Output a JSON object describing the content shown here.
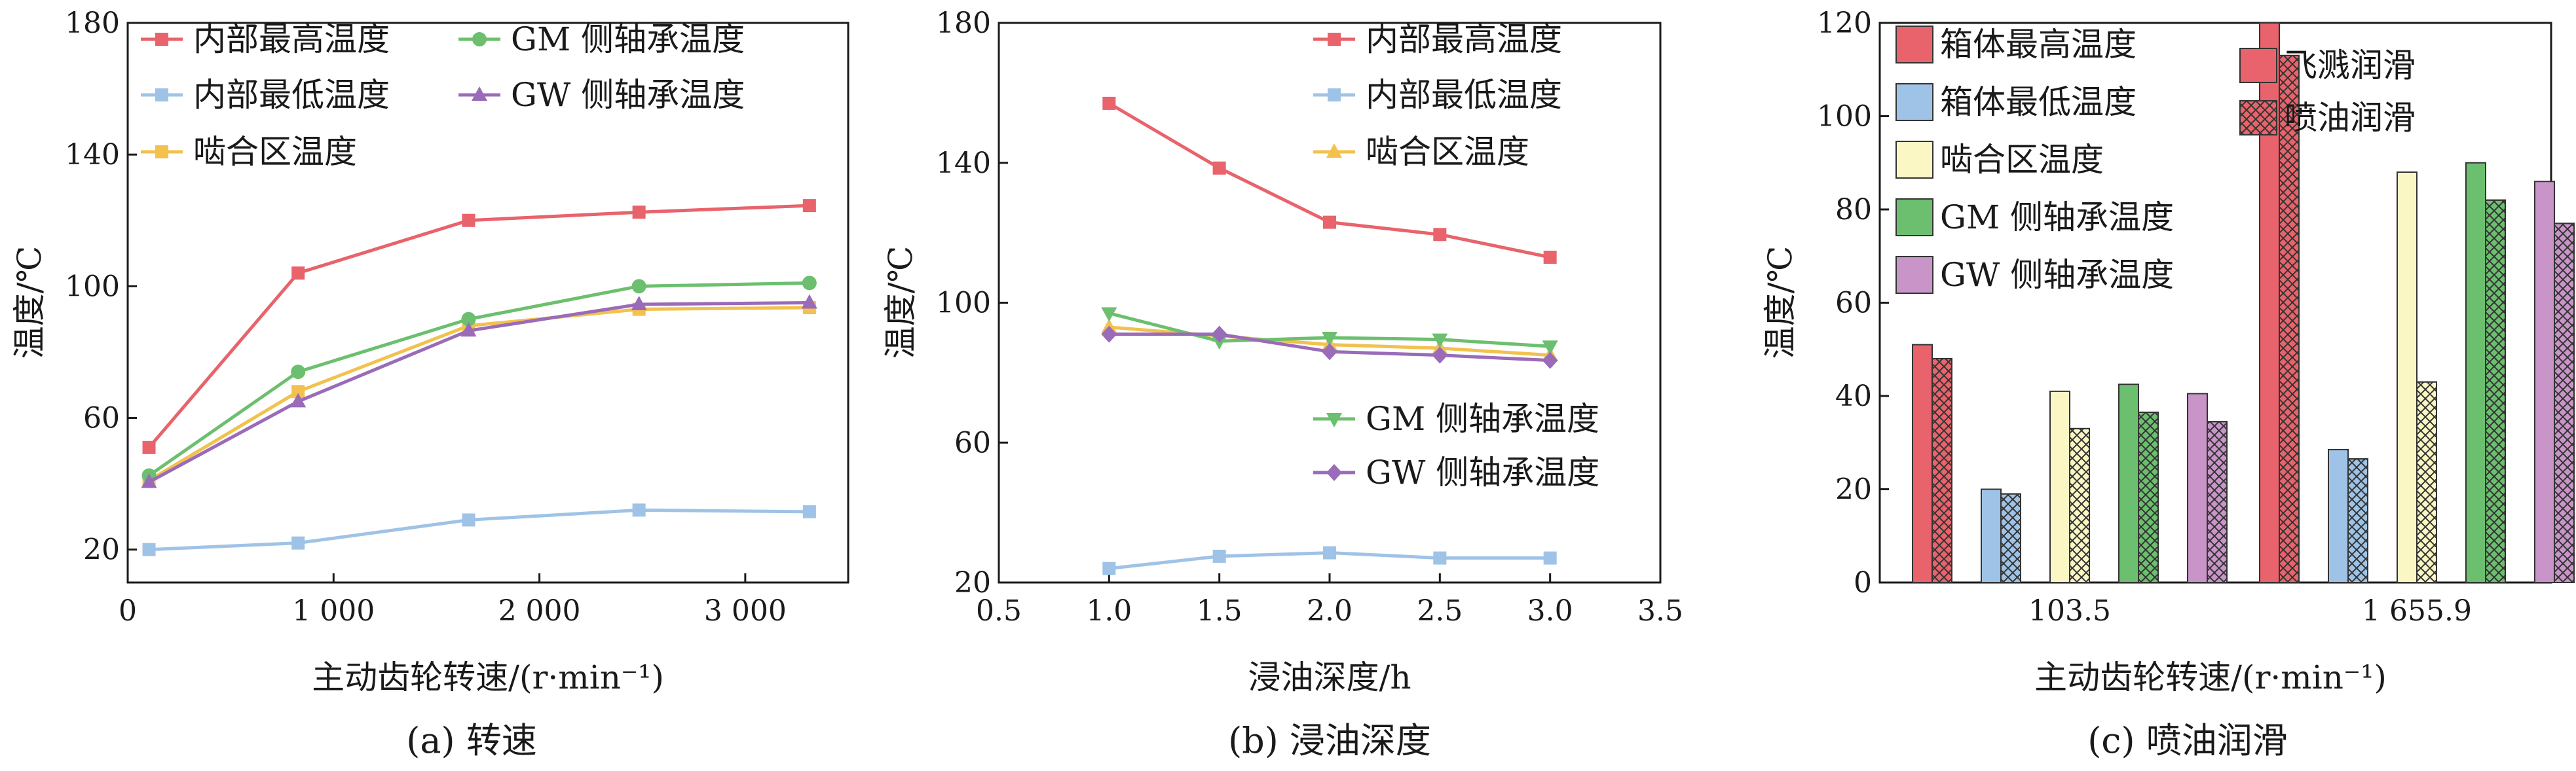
{
  "colors": {
    "red": "#e8636b",
    "blue": "#9fc3e6",
    "yellow": "#f2c14e",
    "green": "#6cbf6e",
    "purple": "#9a6bb8",
    "yellow_fill": "#fbf7c4",
    "purple_fill": "#c995c8",
    "axis": "#1a1a1a"
  },
  "chart_data": [
    {
      "id": "a",
      "type": "line",
      "caption": "(a)  转速",
      "xlabel": "主动齿轮转速/(r·min⁻¹)",
      "ylabel": "温度/℃",
      "xlim": [
        0,
        3500
      ],
      "ylim": [
        10,
        180
      ],
      "xticks": [
        0,
        1000,
        2000,
        3000
      ],
      "xtick_labels": [
        "0",
        "1 000",
        "2 000",
        "3 000"
      ],
      "yticks": [
        20,
        60,
        100,
        140,
        180
      ],
      "ytick_labels": [
        "20",
        "60",
        "100",
        "140",
        "180"
      ],
      "x": [
        103.5,
        827.8,
        1655.9,
        2483.8,
        3311.8
      ],
      "series": [
        {
          "name": "内部最高温度",
          "color": "red",
          "marker": "square",
          "values": [
            51,
            104,
            120,
            122.5,
            124.5
          ]
        },
        {
          "name": "内部最低温度",
          "color": "blue",
          "marker": "square",
          "values": [
            20,
            22,
            29,
            32,
            31.5
          ]
        },
        {
          "name": "啮合区温度",
          "color": "yellow",
          "marker": "square",
          "values": [
            41,
            68,
            88,
            93,
            93.5
          ]
        },
        {
          "name": "GM 侧轴承温度",
          "color": "green",
          "marker": "circle",
          "values": [
            42.5,
            74,
            90,
            100,
            101
          ]
        },
        {
          "name": "GW 侧轴承温度",
          "color": "purple",
          "marker": "triangle-up",
          "values": [
            40.5,
            65,
            86.5,
            94.5,
            95
          ]
        }
      ],
      "legend_position": "top-left, two columns"
    },
    {
      "id": "b",
      "type": "line",
      "caption": "(b)  浸油深度",
      "xlabel": "浸油深度/h",
      "ylabel": "温度/℃",
      "xlim": [
        0.5,
        3.5
      ],
      "ylim": [
        20,
        180
      ],
      "xticks": [
        0.5,
        1.0,
        1.5,
        2.0,
        2.5,
        3.0,
        3.5
      ],
      "xtick_labels": [
        "0.5",
        "1.0",
        "1.5",
        "2.0",
        "2.5",
        "3.0",
        "3.5"
      ],
      "yticks": [
        20,
        60,
        100,
        140,
        180
      ],
      "ytick_labels": [
        "20",
        "60",
        "100",
        "140",
        "180"
      ],
      "x": [
        1.0,
        1.5,
        2.0,
        2.5,
        3.0
      ],
      "series": [
        {
          "name": "内部最高温度",
          "color": "red",
          "marker": "square",
          "values": [
            157,
            138.5,
            123,
            119.5,
            113
          ]
        },
        {
          "name": "内部最低温度",
          "color": "blue",
          "marker": "square",
          "values": [
            24,
            27.5,
            28.5,
            27,
            27
          ]
        },
        {
          "name": "啮合区温度",
          "color": "yellow",
          "marker": "triangle-up",
          "values": [
            93,
            90.5,
            88,
            87,
            85
          ]
        },
        {
          "name": "GM 侧轴承温度",
          "color": "green",
          "marker": "triangle-down",
          "values": [
            97,
            89,
            90,
            89.5,
            87.5
          ]
        },
        {
          "name": "GW 侧轴承温度",
          "color": "purple",
          "marker": "diamond",
          "values": [
            91,
            91,
            86,
            85,
            83.5
          ]
        }
      ],
      "legend_position": "top-right and middle-right"
    },
    {
      "id": "c",
      "type": "bar",
      "caption": "(c)  喷油润滑",
      "xlabel": "主动齿轮转速/(r·min⁻¹)",
      "ylabel": "温度/℃",
      "ylim": [
        0,
        120
      ],
      "yticks": [
        0,
        20,
        40,
        60,
        80,
        100,
        120
      ],
      "ytick_labels": [
        "0",
        "20",
        "40",
        "60",
        "80",
        "100",
        "120"
      ],
      "categories": [
        "103.5",
        "1 655.9"
      ],
      "series": [
        {
          "name": "箱体最高温度",
          "color": "red",
          "splash": [
            51,
            120
          ],
          "spray": [
            48,
            113
          ]
        },
        {
          "name": "箱体最低温度",
          "color": "blue",
          "splash": [
            20,
            28.5
          ],
          "spray": [
            19,
            26.5
          ]
        },
        {
          "name": "啮合区温度",
          "color": "yellow_fill",
          "splash": [
            41,
            88
          ],
          "spray": [
            33,
            43
          ]
        },
        {
          "name": "GM 侧轴承温度",
          "color": "green",
          "splash": [
            42.5,
            90
          ],
          "spray": [
            36.5,
            82
          ]
        },
        {
          "name": "GW 侧轴承温度",
          "color": "purple_fill",
          "splash": [
            40.5,
            86
          ],
          "spray": [
            34.5,
            77
          ]
        }
      ],
      "lubrication_legend": [
        "飞溅润滑",
        "喷油润滑"
      ],
      "legend_position": "top-left (series) and top-right (lubrication)"
    }
  ]
}
